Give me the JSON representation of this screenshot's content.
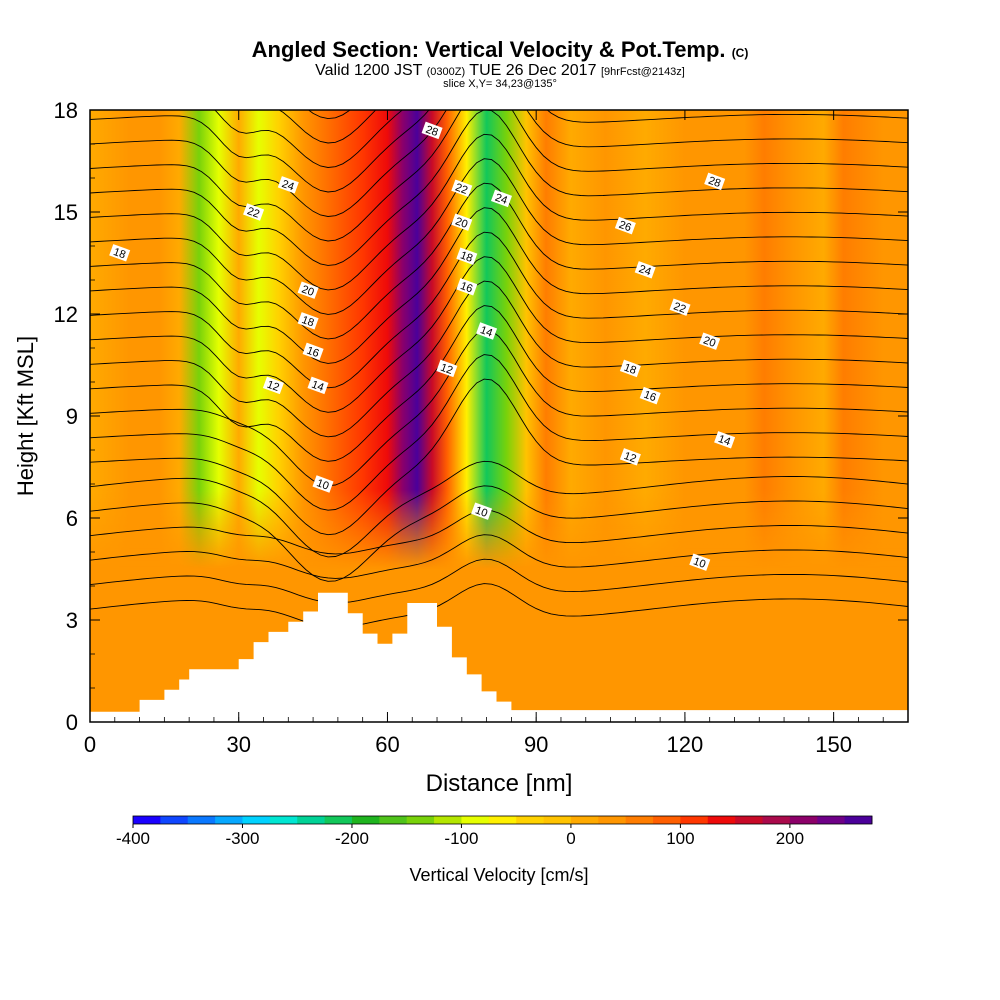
{
  "header": {
    "title": "Angled Section: Vertical Velocity & Pot.Temp.",
    "copyright": "(C)",
    "valid_prefix": "Valid 1200 JST",
    "valid_zulu": "(0300Z)",
    "valid_date": "TUE 26 Dec 2017",
    "forecast": "[9hrFcst@2143z]",
    "slice": "slice X,Y= 34,23@135°"
  },
  "chart_data": {
    "type": "heatmap",
    "xlabel": "Distance [nm]",
    "ylabel": "Height [Kft MSL]",
    "xlim": [
      0,
      165
    ],
    "ylim": [
      0,
      18
    ],
    "x_ticks": [
      0,
      30,
      60,
      90,
      120,
      150
    ],
    "y_ticks": [
      0,
      3,
      6,
      9,
      12,
      15,
      18
    ],
    "vertical_velocity_cm_s": {
      "x_nodes": [
        0,
        8,
        14,
        18,
        22,
        26,
        30,
        34,
        38,
        43,
        50,
        55,
        60,
        63,
        66,
        69,
        72,
        76,
        80,
        84,
        88,
        92,
        97,
        104,
        112,
        120,
        132,
        136,
        142,
        148,
        152,
        160,
        165
      ],
      "profile": [
        20,
        35,
        40,
        15,
        -150,
        -100,
        5,
        -100,
        -50,
        40,
        80,
        100,
        140,
        215,
        265,
        170,
        90,
        -60,
        -220,
        -150,
        -20,
        50,
        20,
        30,
        20,
        40,
        30,
        70,
        30,
        20,
        60,
        30,
        30
      ],
      "uniform_below_kft": 4.5,
      "uniform_value": 35
    },
    "terrain_kft": {
      "x": [
        0,
        10,
        15,
        18,
        20,
        25,
        30,
        33,
        36,
        40,
        43,
        46,
        52,
        55,
        58,
        61,
        64,
        70,
        73,
        76,
        79,
        82,
        85,
        165
      ],
      "height": [
        0.3,
        0.65,
        0.95,
        1.25,
        1.55,
        1.55,
        1.85,
        2.35,
        2.65,
        2.95,
        3.25,
        3.8,
        3.2,
        2.6,
        2.3,
        2.6,
        3.5,
        2.8,
        1.9,
        1.4,
        0.9,
        0.6,
        0.35,
        0.35
      ]
    },
    "potential_temperature_contours": [
      {
        "value": 10,
        "label_points": [
          [
            47,
            7.0
          ],
          [
            79,
            6.2
          ],
          [
            123,
            4.7
          ]
        ]
      },
      {
        "value": 12,
        "label_points": [
          [
            37,
            9.9
          ],
          [
            72,
            10.4
          ],
          [
            109,
            7.8
          ]
        ]
      },
      {
        "value": 14,
        "label_points": [
          [
            46,
            9.9
          ],
          [
            80,
            11.5
          ],
          [
            128,
            8.3
          ]
        ]
      },
      {
        "value": 16,
        "label_points": [
          [
            45,
            10.9
          ],
          [
            76,
            12.8
          ],
          [
            113,
            9.6
          ]
        ]
      },
      {
        "value": 18,
        "label_points": [
          [
            6,
            13.8
          ],
          [
            44,
            11.8
          ],
          [
            76,
            13.7
          ],
          [
            109,
            10.4
          ]
        ]
      },
      {
        "value": 20,
        "label_points": [
          [
            44,
            12.7
          ],
          [
            75,
            14.7
          ],
          [
            125,
            11.2
          ]
        ]
      },
      {
        "value": 22,
        "label_points": [
          [
            33,
            15.0
          ],
          [
            75,
            15.7
          ],
          [
            119,
            12.2
          ]
        ]
      },
      {
        "value": 24,
        "label_points": [
          [
            40,
            15.8
          ],
          [
            83,
            15.4
          ],
          [
            112,
            13.3
          ]
        ]
      },
      {
        "value": 26,
        "label_points": [
          [
            108,
            14.6
          ]
        ]
      },
      {
        "value": 28,
        "label_points": [
          [
            69,
            17.4
          ],
          [
            126,
            15.9
          ]
        ]
      }
    ],
    "colorbar": {
      "label": "Vertical Velocity [cm/s]",
      "min": -400,
      "max": 275,
      "step": 25,
      "tick_values": [
        -400,
        -300,
        -200,
        -100,
        0,
        100,
        200
      ],
      "colors": [
        "#1a00ff",
        "#0f46ff",
        "#0a78ff",
        "#06a8ff",
        "#00d2ff",
        "#00e6d2",
        "#00d296",
        "#12c75a",
        "#1fb41f",
        "#4fc31a",
        "#78d20a",
        "#b4e600",
        "#e6ff00",
        "#fff000",
        "#ffd200",
        "#ffc300",
        "#ffaa00",
        "#ff9600",
        "#ff7d00",
        "#ff5f00",
        "#ff3700",
        "#ee0a0a",
        "#c80a28",
        "#aa0a4b",
        "#8c0069",
        "#6e0087",
        "#4b009a"
      ]
    }
  }
}
